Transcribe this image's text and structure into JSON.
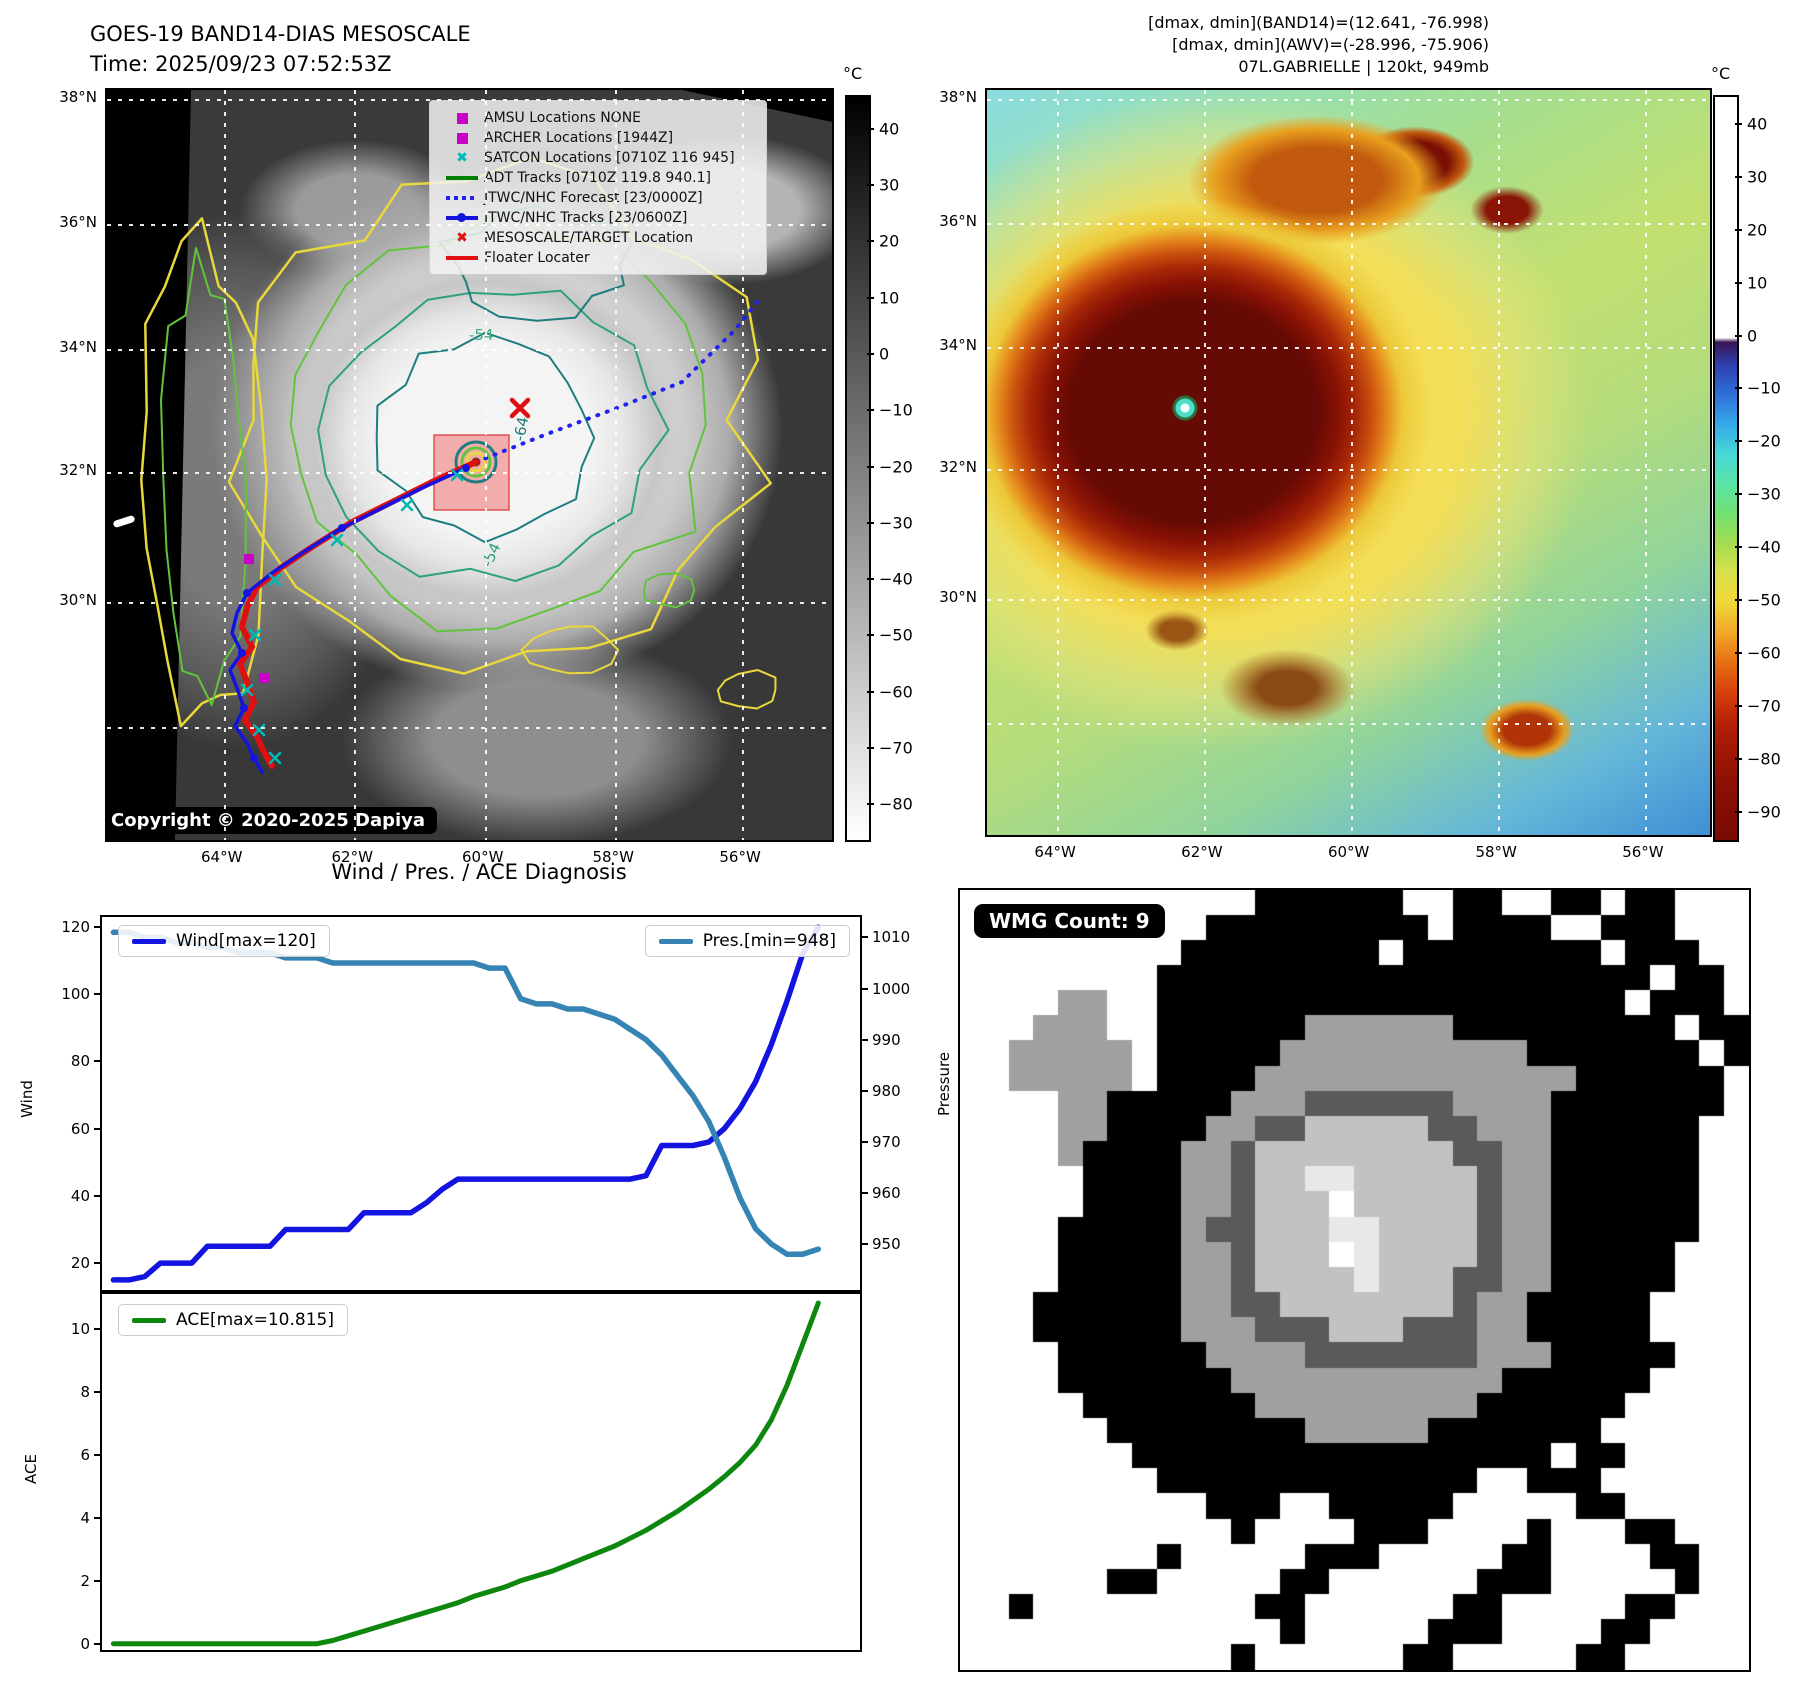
{
  "header": {
    "title": "GOES-19 BAND14-DIAS MESOSCALE",
    "time": "Time: 2025/09/23 07:52:53Z",
    "info_line1": "[dmax, dmin](BAND14)=(12.641, -76.998)",
    "info_line2": "[dmax, dmin](AWV)=(-28.996, -75.906)",
    "info_line3": "07L.GABRIELLE | 120kt, 949mb"
  },
  "left_map": {
    "legend_items": [
      {
        "marker": "magenta-square",
        "label": "AMSU Locations NONE"
      },
      {
        "marker": "magenta-square",
        "label": "ARCHER Locations [1944Z]"
      },
      {
        "marker": "cyan-x",
        "label": "SATCON Locations [0710Z 116 945]"
      },
      {
        "marker": "green-line",
        "label": "ADT Tracks [0710Z 119.8 940.1]"
      },
      {
        "marker": "blue-dotted-line",
        "label": "JTWC/NHC Forecast [23/0000Z]"
      },
      {
        "marker": "blue-line-dot",
        "label": "JTWC/NHC Tracks [23/0600Z]"
      },
      {
        "marker": "red-x",
        "label": "MESOSCALE/TARGET Location"
      },
      {
        "marker": "red-line",
        "label": "Floater Locater"
      }
    ],
    "copyright": "Copyright © 2020-2025 Dapiya",
    "lat_labels": [
      "38°N",
      "36°N",
      "34°N",
      "32°N",
      "30°N"
    ],
    "lon_labels": [
      "64°W",
      "62°W",
      "60°W",
      "58°W",
      "56°W"
    ],
    "contour_labels": [
      "-54",
      "-64",
      "-54"
    ],
    "colorbar": {
      "unit": "°C",
      "ticks": [
        40,
        30,
        20,
        10,
        0,
        -10,
        -20,
        -30,
        -40,
        -50,
        -60,
        -70,
        -80
      ]
    }
  },
  "right_map": {
    "lat_labels": [
      "38°N",
      "36°N",
      "34°N",
      "32°N",
      "30°N"
    ],
    "lon_labels": [
      "64°W",
      "62°W",
      "60°W",
      "58°W",
      "56°W"
    ],
    "colorbar": {
      "unit": "°C",
      "ticks": [
        40,
        30,
        20,
        10,
        0,
        -10,
        -20,
        -30,
        -40,
        -50,
        -60,
        -70,
        -80,
        -90
      ]
    }
  },
  "wmg": {
    "count_label": "WMG Count: 9",
    "palette": {
      ".": "#ffffff",
      "k": "#000000",
      "g": "#a0a0a0",
      "d": "#5a5a5a",
      "a": "#c2c2c2",
      "w": "#e8e8e8",
      "W": "#ffffff"
    },
    "grid": [
      "............kkkkkk..kk..kk.kk...",
      "..........kkkkkkkkk.kkkk..kkk...",
      ".........kkkkkkkk.kkkkkkkk.kkk..",
      "........kkkkkkkkkkkkkkkkkkkk.kk.",
      "....gg..kkkkkkkkkkkkkkkkkkk.kkk.",
      "...ggg..kkkkkkggggggkkkkkkkkk.kk",
      "..ggggg.kkkkkggggggggggkkkkkkk.k",
      "..ggggg.kkkkgggggggggggggkkkkkk.",
      "....ggkkkkkgggddddddggggkkkkkkk.",
      "....ggkkkkggddaaaaaddgggkkkkkk..",
      "....gkkkkggdaaaaaaaaddggkkkkkk..",
      ".....kkkkggdaawwaaaaadggkkkkkk..",
      ".....kkkkggdaaaWaaaaadggkkkkkk..",
      "....kkkkkgddaaawwaaaadggkkkkkk..",
      "....kkkkkggdaaaWwaaaadggkkkkk...",
      "....kkkkkggdaaaawaaaddggkkkkk...",
      "...kkkkkkggddaaaaaaadggkkkkk....",
      "...kkkkkkgggdddaaadddggkkkkk....",
      "....kkkkkkggggdddddddgggkkkkk...",
      "....kkkkkkkgggggggggggkkkkkk....",
      ".....kkkkkkkgggggggggkkkkkk.....",
      "......kkkkkkkkgggggkkkkkkk......",
      ".......kkkkkkkkkkkkkkkkk.kk.....",
      "........kkkkkkkkkkkkk..kkk......",
      "..........kkk..kkkkk.....kk.....",
      "...........k....kkk....k...kk...",
      "........k.....kkk.....kk....kk..",
      "......kk.....kk......kkk.....k..",
      "..k.........kk......kk.....kk...",
      ".............k.....kkk....kk....",
      "...........k......kk.....kk....."
    ]
  },
  "chart_data": {
    "type": "line",
    "title": "Wind / Pres. / ACE Diagnosis",
    "x_axis": {
      "label": "",
      "tick_labels": []
    },
    "panels": [
      {
        "name": "wind_pressure",
        "left_axis": {
          "label": "Wind",
          "ticks": [
            120,
            100,
            80,
            60,
            40,
            20
          ],
          "range": [
            12,
            123
          ]
        },
        "right_axis": {
          "label": "Pressure",
          "ticks": [
            1010,
            1000,
            990,
            980,
            970,
            960,
            950
          ],
          "range": [
            941,
            1014
          ]
        },
        "legend_position": [
          "upper-left",
          "upper-right"
        ],
        "series": [
          {
            "name": "Wind[max=120]",
            "color": "#1414e0",
            "axis": "left",
            "values": [
              15,
              15,
              16,
              20,
              20,
              20,
              25,
              25,
              25,
              25,
              25,
              30,
              30,
              30,
              30,
              30,
              35,
              35,
              35,
              35,
              38,
              42,
              45,
              45,
              45,
              45,
              45,
              45,
              45,
              45,
              45,
              45,
              45,
              45,
              46,
              55,
              55,
              55,
              56,
              60,
              66,
              74,
              85,
              98,
              112,
              120
            ]
          },
          {
            "name": "Pres.[min=948]",
            "color": "#3584b4",
            "axis": "right",
            "values": [
              1011,
              1011,
              1010,
              1010,
              1009,
              1009,
              1008,
              1008,
              1007,
              1007,
              1007,
              1006,
              1006,
              1006,
              1005,
              1005,
              1005,
              1005,
              1005,
              1005,
              1005,
              1005,
              1005,
              1005,
              1004,
              1004,
              998,
              997,
              997,
              996,
              996,
              995,
              994,
              992,
              990,
              987,
              983,
              979,
              974,
              967,
              959,
              953,
              950,
              948,
              948,
              949
            ]
          }
        ]
      },
      {
        "name": "ace",
        "left_axis": {
          "label": "ACE",
          "ticks": [
            10,
            8,
            6,
            4,
            2,
            0
          ],
          "range": [
            -0.2,
            11.1
          ]
        },
        "legend_position": [
          "upper-left"
        ],
        "series": [
          {
            "name": "ACE[max=10.815]",
            "color": "#0e870e",
            "axis": "left",
            "values": [
              0,
              0,
              0,
              0,
              0,
              0,
              0,
              0,
              0,
              0,
              0,
              0,
              0,
              0,
              0.1,
              0.25,
              0.4,
              0.55,
              0.7,
              0.85,
              1.0,
              1.15,
              1.3,
              1.5,
              1.65,
              1.8,
              2.0,
              2.15,
              2.3,
              2.5,
              2.7,
              2.9,
              3.1,
              3.35,
              3.6,
              3.9,
              4.2,
              4.55,
              4.9,
              5.3,
              5.75,
              6.3,
              7.1,
              8.2,
              9.5,
              10.815
            ]
          }
        ]
      }
    ]
  },
  "appearance": {
    "track_red": "#e01010",
    "track_blue": "#1414e0",
    "forecast_blue": "#2222ee",
    "satcon_cyan": "#00b8b8",
    "amsu_magenta": "#c800c8",
    "adt_green": "#008000",
    "contour_yellow": "#e8d83c",
    "contour_green": "#62c43d",
    "contour_teal": "#2fa080",
    "contour_dark_teal": "#1f7d7d",
    "target_fill": "rgba(240,100,100,0.5)"
  }
}
